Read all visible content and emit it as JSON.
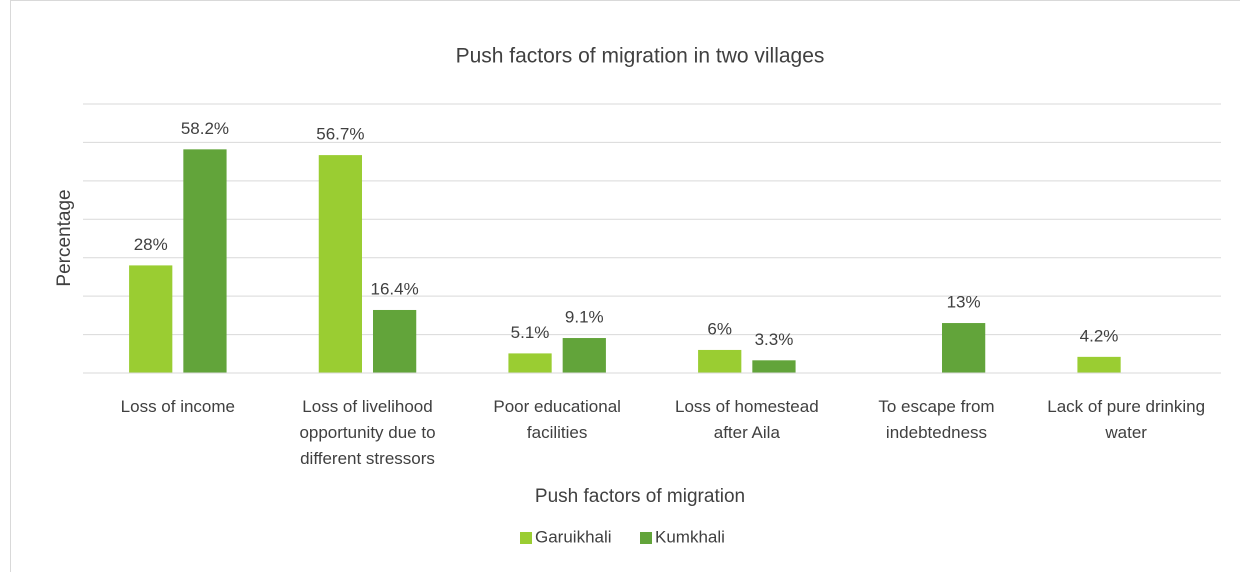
{
  "chart_data": {
    "type": "bar",
    "title": "Push factors of migration in two villages",
    "x_label": "Push factors of migration",
    "y_label": "Percentage",
    "categories": [
      "Loss of income",
      "Loss of livelihood opportunity due to different stressors",
      "Poor educational facilities",
      "Loss of homestead after Aila",
      "To escape from indebtedness",
      "Lack of pure drinking water"
    ],
    "series": [
      {
        "name": "Garuikhali",
        "color": "#9acd32",
        "values": [
          28,
          56.7,
          5.1,
          6,
          null,
          4.2
        ],
        "value_labels": [
          "28%",
          "56.7%",
          "5.1%",
          "6%",
          null,
          "4.2%"
        ]
      },
      {
        "name": "Kumkhali",
        "color": "#62a43a",
        "values": [
          58.2,
          16.4,
          9.1,
          3.3,
          13,
          null
        ],
        "value_labels": [
          "58.2%",
          "16.4%",
          "9.1%",
          "3.3%",
          "13%",
          null
        ]
      }
    ],
    "ylim": [
      0,
      70
    ],
    "yticks": [
      0,
      10,
      20,
      30,
      40,
      50,
      60,
      70
    ],
    "grid": true,
    "legend": "bottom"
  }
}
